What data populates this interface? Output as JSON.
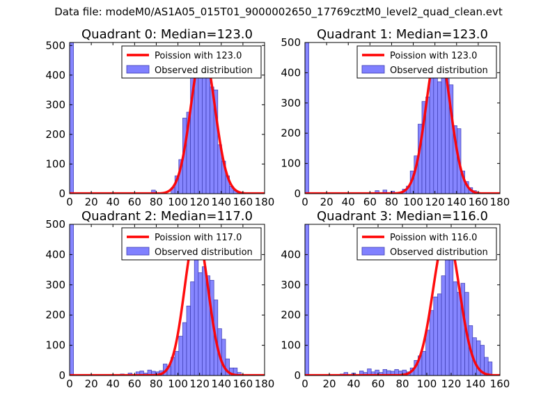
{
  "suptitle": "Data file: modeM0/AS1A05_015T01_9000002650_17769cztM0_level2_quad_clean.evt",
  "colors": {
    "poisson": "#ff0000",
    "bar_fill": "#8080ff",
    "bar_edge": "#3a3ab0"
  },
  "chart_data": [
    {
      "type": "bar",
      "title": "Quadrant 0: Median=123.0",
      "xlim": [
        0,
        180
      ],
      "ylim": [
        0,
        510
      ],
      "xticks": [
        0,
        20,
        40,
        60,
        80,
        100,
        120,
        140,
        160,
        180
      ],
      "yticks": [
        0,
        100,
        200,
        300,
        400,
        500
      ],
      "legend": {
        "position": "top-right",
        "line_label": "Poission with 123.0",
        "bar_label": "Observed distribution"
      },
      "poisson_mean": 123.0,
      "poisson_peak": 485,
      "bin_width": 3.6,
      "bins": [
        [
          0,
          510
        ],
        [
          75.6,
          12
        ],
        [
          93.6,
          20
        ],
        [
          97.2,
          60
        ],
        [
          100.8,
          115
        ],
        [
          104.4,
          255
        ],
        [
          108,
          275
        ],
        [
          111.6,
          400
        ],
        [
          115.2,
          450
        ],
        [
          118.8,
          480
        ],
        [
          122.4,
          490
        ],
        [
          126,
          420
        ],
        [
          129.6,
          360
        ],
        [
          133.2,
          350
        ],
        [
          136.8,
          165
        ],
        [
          140.4,
          110
        ],
        [
          144,
          60
        ],
        [
          147.6,
          25
        ],
        [
          151.2,
          10
        ],
        [
          154.8,
          5
        ],
        [
          158.4,
          3
        ]
      ]
    },
    {
      "type": "bar",
      "title": "Quadrant 1: Median=123.0",
      "xlim": [
        0,
        180
      ],
      "ylim": [
        0,
        500
      ],
      "xticks": [
        0,
        20,
        40,
        60,
        80,
        100,
        120,
        140,
        160,
        180
      ],
      "yticks": [
        0,
        100,
        200,
        300,
        400,
        500
      ],
      "legend": {
        "position": "top-right",
        "line_label": "Poission with 123.0",
        "bar_label": "Observed distribution"
      },
      "poisson_mean": 123.0,
      "poisson_peak": 485,
      "bin_width": 3.6,
      "bins": [
        [
          0,
          500
        ],
        [
          64.8,
          10
        ],
        [
          72,
          12
        ],
        [
          79.2,
          8
        ],
        [
          90,
          15
        ],
        [
          93.6,
          25
        ],
        [
          97.2,
          75
        ],
        [
          100.8,
          125
        ],
        [
          104.4,
          230
        ],
        [
          108,
          305
        ],
        [
          111.6,
          320
        ],
        [
          115.2,
          385
        ],
        [
          118.8,
          440
        ],
        [
          122.4,
          370
        ],
        [
          126,
          470
        ],
        [
          129.6,
          380
        ],
        [
          133.2,
          360
        ],
        [
          136.8,
          225
        ],
        [
          140.4,
          215
        ],
        [
          144,
          75
        ],
        [
          147.6,
          40
        ],
        [
          151.2,
          20
        ],
        [
          154.8,
          10
        ],
        [
          158.4,
          3
        ]
      ]
    },
    {
      "type": "bar",
      "title": "Quadrant 2: Median=117.0",
      "xlim": [
        0,
        180
      ],
      "ylim": [
        0,
        500
      ],
      "xticks": [
        0,
        20,
        40,
        60,
        80,
        100,
        120,
        140,
        160,
        180
      ],
      "yticks": [
        0,
        100,
        200,
        300,
        400,
        500
      ],
      "legend": {
        "position": "top-right",
        "line_label": "Poission with 117.0",
        "bar_label": "Observed distribution"
      },
      "poisson_mean": 117.0,
      "poisson_peak": 478,
      "bin_width": 3.6,
      "bins": [
        [
          0,
          500
        ],
        [
          46.8,
          5
        ],
        [
          54,
          8
        ],
        [
          61.2,
          12
        ],
        [
          64.8,
          15
        ],
        [
          68.4,
          8
        ],
        [
          72,
          18
        ],
        [
          75.6,
          14
        ],
        [
          79.2,
          12
        ],
        [
          82.8,
          16
        ],
        [
          86.4,
          38
        ],
        [
          90,
          30
        ],
        [
          93.6,
          60
        ],
        [
          97.2,
          80
        ],
        [
          100.8,
          130
        ],
        [
          104.4,
          175
        ],
        [
          108,
          230
        ],
        [
          111.6,
          310
        ],
        [
          115.2,
          430
        ],
        [
          118.8,
          340
        ],
        [
          122.4,
          360
        ],
        [
          126,
          330
        ],
        [
          129.6,
          315
        ],
        [
          133.2,
          250
        ],
        [
          136.8,
          155
        ],
        [
          140.4,
          120
        ],
        [
          144,
          55
        ],
        [
          147.6,
          25
        ],
        [
          151.2,
          25
        ],
        [
          154.8,
          10
        ]
      ]
    },
    {
      "type": "bar",
      "title": "Quadrant 3: Median=116.0",
      "xlim": [
        0,
        160
      ],
      "ylim": [
        0,
        500
      ],
      "xticks": [
        0,
        20,
        40,
        60,
        80,
        100,
        120,
        140,
        160
      ],
      "yticks": [
        0,
        100,
        200,
        300,
        400
      ],
      "legend": {
        "position": "top-right",
        "line_label": "Poission with 116.0",
        "bar_label": "Observed distribution"
      },
      "poisson_mean": 116.0,
      "poisson_peak": 472,
      "bin_width": 3.2,
      "bins": [
        [
          0,
          500
        ],
        [
          28.8,
          5
        ],
        [
          32,
          10
        ],
        [
          38.4,
          8
        ],
        [
          44.8,
          15
        ],
        [
          48,
          10
        ],
        [
          51.2,
          22
        ],
        [
          54.4,
          12
        ],
        [
          57.6,
          18
        ],
        [
          60.8,
          10
        ],
        [
          64,
          20
        ],
        [
          67.2,
          16
        ],
        [
          70.4,
          14
        ],
        [
          73.6,
          20
        ],
        [
          76.8,
          15
        ],
        [
          80,
          18
        ],
        [
          83.2,
          12
        ],
        [
          86.4,
          25
        ],
        [
          89.6,
          50
        ],
        [
          92.8,
          65
        ],
        [
          96,
          80
        ],
        [
          99.2,
          150
        ],
        [
          102.4,
          215
        ],
        [
          105.6,
          260
        ],
        [
          108.8,
          270
        ],
        [
          112,
          330
        ],
        [
          115.2,
          420
        ],
        [
          118.4,
          435
        ],
        [
          121.6,
          310
        ],
        [
          124.8,
          275
        ],
        [
          128,
          305
        ],
        [
          131.2,
          275
        ],
        [
          134.4,
          165
        ],
        [
          137.6,
          125
        ],
        [
          140.8,
          115
        ],
        [
          144,
          100
        ],
        [
          147.2,
          60
        ],
        [
          150.4,
          45
        ]
      ]
    }
  ]
}
